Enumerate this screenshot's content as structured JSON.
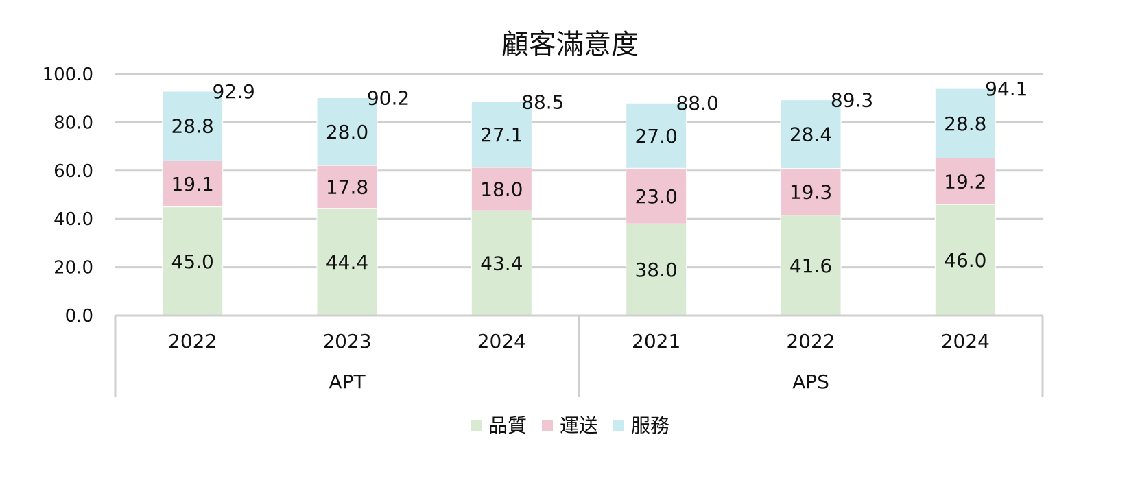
{
  "chart_data": {
    "type": "bar",
    "stacked": true,
    "title": "顧客滿意度",
    "groups": [
      {
        "label": "APT",
        "categories": [
          "2022",
          "2023",
          "2024"
        ]
      },
      {
        "label": "APS",
        "categories": [
          "2021",
          "2022",
          "2024"
        ]
      }
    ],
    "categories": [
      "2022",
      "2023",
      "2024",
      "2021",
      "2022",
      "2024"
    ],
    "series": [
      {
        "name": "品質",
        "color": "#d9ead3",
        "values": [
          45.0,
          44.4,
          43.4,
          38.0,
          41.6,
          46.0
        ]
      },
      {
        "name": "運送",
        "color": "#efc6d2",
        "values": [
          19.1,
          17.8,
          18.0,
          23.0,
          19.3,
          19.2
        ]
      },
      {
        "name": "服務",
        "color": "#c9eaef",
        "values": [
          28.8,
          28.0,
          27.1,
          27.0,
          28.4,
          28.8
        ]
      }
    ],
    "totals": [
      92.9,
      90.2,
      88.5,
      88.0,
      89.3,
      94.1
    ],
    "value_format_decimals": 1,
    "ylim": [
      0,
      100
    ],
    "yticks": [
      "0.0",
      "20.0",
      "40.0",
      "60.0",
      "80.0",
      "100.0"
    ],
    "grid": true,
    "legend_position": "bottom"
  }
}
